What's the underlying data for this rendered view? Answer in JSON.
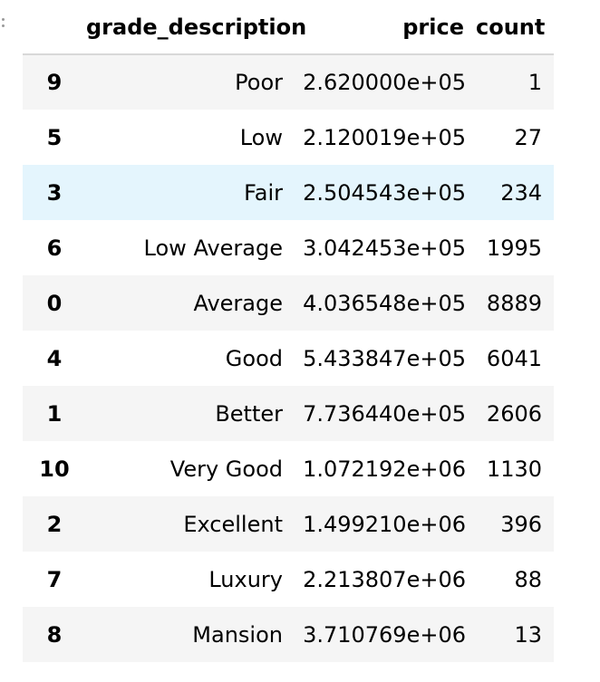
{
  "table": {
    "columns": [
      "",
      "grade_description",
      "price",
      "count"
    ],
    "hovered_row": 2,
    "rows": [
      {
        "index": "9",
        "grade_description": "Poor",
        "price": "2.620000e+05",
        "count": "1"
      },
      {
        "index": "5",
        "grade_description": "Low",
        "price": "2.120019e+05",
        "count": "27"
      },
      {
        "index": "3",
        "grade_description": "Fair",
        "price": "2.504543e+05",
        "count": "234"
      },
      {
        "index": "6",
        "grade_description": "Low Average",
        "price": "3.042453e+05",
        "count": "1995"
      },
      {
        "index": "0",
        "grade_description": "Average",
        "price": "4.036548e+05",
        "count": "8889"
      },
      {
        "index": "4",
        "grade_description": "Good",
        "price": "5.433847e+05",
        "count": "6041"
      },
      {
        "index": "1",
        "grade_description": "Better",
        "price": "7.736440e+05",
        "count": "2606"
      },
      {
        "index": "10",
        "grade_description": "Very Good",
        "price": "1.072192e+06",
        "count": "1130"
      },
      {
        "index": "2",
        "grade_description": "Excellent",
        "price": "1.499210e+06",
        "count": "396"
      },
      {
        "index": "7",
        "grade_description": "Luxury",
        "price": "2.213807e+06",
        "count": "88"
      },
      {
        "index": "8",
        "grade_description": "Mansion",
        "price": "3.710769e+06",
        "count": "13"
      }
    ]
  },
  "colors": {
    "row_stripe": "#f5f5f5",
    "row_hover": "#e4f5fd",
    "header_rule": "#d8d8d8"
  }
}
